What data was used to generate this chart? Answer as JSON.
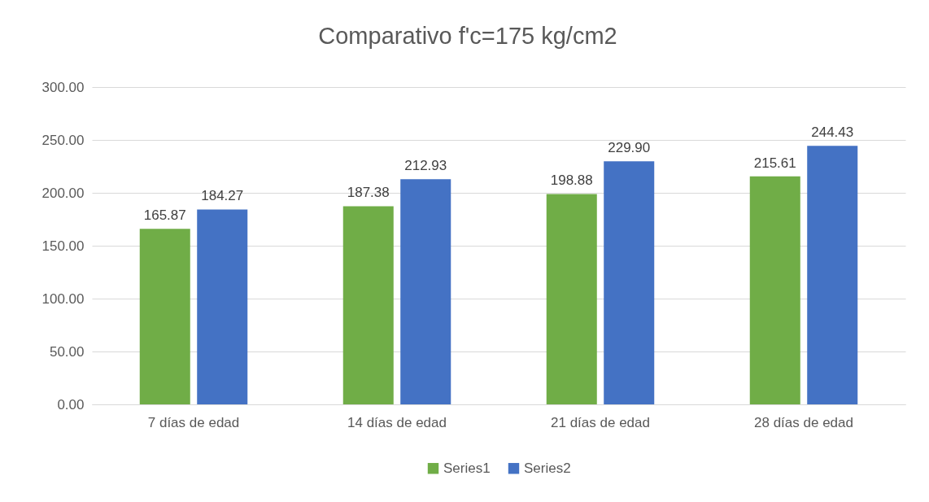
{
  "chart_data": {
    "type": "bar",
    "title": "Comparativo f'c=175 kg/cm2",
    "categories": [
      "7 días de edad",
      "14 días de edad",
      "21 días de edad",
      "28 días de edad"
    ],
    "series": [
      {
        "name": "Series1",
        "color": "#70ad47",
        "values": [
          165.87,
          187.38,
          198.88,
          215.61
        ],
        "value_labels": [
          "165.87",
          "187.38",
          "198.88",
          "215.61"
        ]
      },
      {
        "name": "Series2",
        "color": "#4472c4",
        "values": [
          184.27,
          212.93,
          229.9,
          244.43
        ],
        "value_labels": [
          "184.27",
          "212.93",
          "229.90",
          "244.43"
        ]
      }
    ],
    "ylim": [
      0,
      300
    ],
    "yticks": [
      {
        "value": 0,
        "label": "0.00"
      },
      {
        "value": 50,
        "label": "50.00"
      },
      {
        "value": 100,
        "label": "100.00"
      },
      {
        "value": 150,
        "label": "150.00"
      },
      {
        "value": 200,
        "label": "200.00"
      },
      {
        "value": 250,
        "label": "250.00"
      },
      {
        "value": 300,
        "label": "300.00"
      }
    ],
    "grid": "y",
    "legend": "bottom"
  }
}
